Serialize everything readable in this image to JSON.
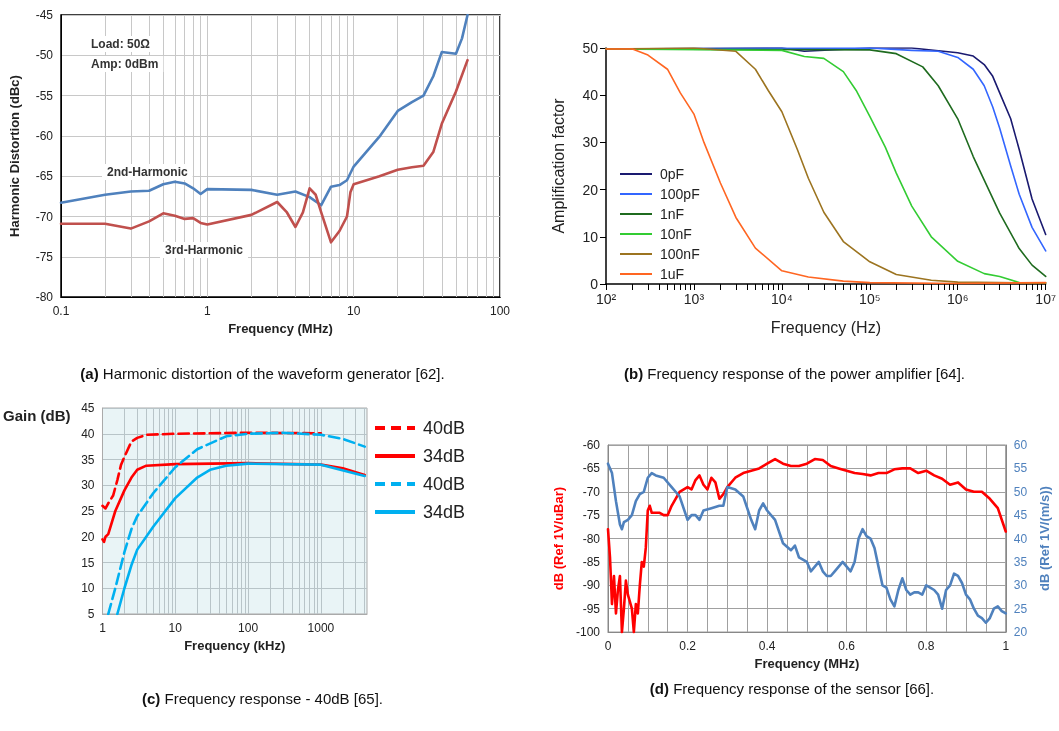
{
  "chart_data": [
    {
      "type": "line",
      "title": "(a) Harmonic distortion of the waveform generator [62].",
      "xlabel": "Frequency (MHz)",
      "ylabel": "Harmonic Distortion (dBc)",
      "log": "x",
      "grid": true,
      "xlim": [
        0.1,
        100
      ],
      "ylim": [
        -80,
        -45
      ],
      "xticks": [
        0.1,
        {
          "value": 0.2,
          "label": null
        },
        {
          "value": 0.3,
          "label": null
        },
        {
          "value": 0.4,
          "label": null
        },
        {
          "value": 0.5,
          "label": null
        },
        {
          "value": 0.6,
          "label": null
        },
        {
          "value": 0.7,
          "label": null
        },
        {
          "value": 0.8,
          "label": null
        },
        {
          "value": 0.9,
          "label": null
        },
        1,
        {
          "value": 2,
          "label": null
        },
        {
          "value": 3,
          "label": null
        },
        {
          "value": 4,
          "label": null
        },
        {
          "value": 5,
          "label": null
        },
        {
          "value": 6,
          "label": null
        },
        {
          "value": 7,
          "label": null
        },
        {
          "value": 8,
          "label": null
        },
        {
          "value": 9,
          "label": null
        },
        10,
        {
          "value": 20,
          "label": null
        },
        {
          "value": 30,
          "label": null
        },
        {
          "value": 40,
          "label": null
        },
        {
          "value": 50,
          "label": null
        },
        {
          "value": 60,
          "label": null
        },
        {
          "value": 70,
          "label": null
        },
        {
          "value": 80,
          "label": null
        },
        {
          "value": 90,
          "label": null
        },
        100
      ],
      "yticks": [
        -80,
        -75,
        -70,
        -65,
        -60,
        -55,
        -50,
        -45
      ],
      "annotations": [
        "Load: 50Ω",
        "Amp: 0dBm",
        "2nd-Harmonic",
        "3rd-Harmonic"
      ],
      "series": [
        {
          "color": "#4f81bd",
          "x": [
            0.1,
            0.2,
            0.3,
            0.4,
            0.5,
            0.6,
            0.7,
            0.8,
            0.9,
            1,
            2,
            3,
            4,
            5,
            6,
            7,
            8,
            9,
            10,
            15,
            20,
            25,
            30,
            35,
            40,
            50,
            55,
            60
          ],
          "values": [
            -68.3,
            -67.3,
            -66.9,
            -66.8,
            -66.0,
            -65.7,
            -65.9,
            -66.5,
            -67.2,
            -66.6,
            -66.7,
            -67.3,
            -66.9,
            -67.6,
            -68.6,
            -66.3,
            -66.1,
            -65.5,
            -63.8,
            -60.1,
            -56.9,
            -55.8,
            -55.0,
            -52.6,
            -49.6,
            -49.8,
            -47.9,
            -45
          ]
        },
        {
          "color": "#c0504d",
          "x": [
            0.1,
            0.2,
            0.3,
            0.4,
            0.5,
            0.6,
            0.7,
            0.8,
            0.9,
            1,
            2,
            3,
            3.5,
            4,
            4.5,
            5,
            5.5,
            6,
            7,
            8,
            9,
            9.5,
            10,
            15,
            20,
            25,
            30,
            35,
            40,
            50,
            60
          ],
          "values": [
            -70.9,
            -70.9,
            -71.5,
            -70.6,
            -69.6,
            -69.9,
            -70.3,
            -70.2,
            -70.8,
            -71.0,
            -69.8,
            -68.2,
            -69.5,
            -71.3,
            -69.5,
            -66.5,
            -67.3,
            -69.5,
            -73.2,
            -71.8,
            -70.0,
            -67.0,
            -66.0,
            -65.0,
            -64.2,
            -63.9,
            -63.7,
            -62.0,
            -58.5,
            -54.5,
            -50.6
          ]
        }
      ]
    },
    {
      "type": "line",
      "title": "(b) Frequency response of the power amplifier [64].",
      "xlabel": "Frequency (Hz)",
      "ylabel": "Amplification factor",
      "log": "x",
      "grid": false,
      "legend": "bottom left",
      "xlim": [
        100,
        10000000
      ],
      "ylim": [
        0,
        50
      ],
      "xticks": [
        {
          "value": 100,
          "label": "10²"
        },
        {
          "value": 200,
          "label": null
        },
        {
          "value": 300,
          "label": null
        },
        {
          "value": 400,
          "label": null
        },
        {
          "value": 500,
          "label": null
        },
        {
          "value": 600,
          "label": null
        },
        {
          "value": 700,
          "label": null
        },
        {
          "value": 800,
          "label": null
        },
        {
          "value": 900,
          "label": null
        },
        {
          "value": 1000,
          "label": "10³"
        },
        {
          "value": 2000,
          "label": null
        },
        {
          "value": 3000,
          "label": null
        },
        {
          "value": 4000,
          "label": null
        },
        {
          "value": 5000,
          "label": null
        },
        {
          "value": 6000,
          "label": null
        },
        {
          "value": 7000,
          "label": null
        },
        {
          "value": 8000,
          "label": null
        },
        {
          "value": 9000,
          "label": null
        },
        {
          "value": 10000,
          "label": "10⁴"
        },
        {
          "value": 20000,
          "label": null
        },
        {
          "value": 30000,
          "label": null
        },
        {
          "value": 40000,
          "label": null
        },
        {
          "value": 50000,
          "label": null
        },
        {
          "value": 60000,
          "label": null
        },
        {
          "value": 70000,
          "label": null
        },
        {
          "value": 80000,
          "label": null
        },
        {
          "value": 90000,
          "label": null
        },
        {
          "value": 100000,
          "label": "10⁵"
        },
        {
          "value": 200000,
          "label": null
        },
        {
          "value": 300000,
          "label": null
        },
        {
          "value": 400000,
          "label": null
        },
        {
          "value": 500000,
          "label": null
        },
        {
          "value": 600000,
          "label": null
        },
        {
          "value": 700000,
          "label": null
        },
        {
          "value": 800000,
          "label": null
        },
        {
          "value": 900000,
          "label": null
        },
        {
          "value": 1000000,
          "label": "10⁶"
        },
        {
          "value": 2000000,
          "label": null
        },
        {
          "value": 3000000,
          "label": null
        },
        {
          "value": 4000000,
          "label": null
        },
        {
          "value": 5000000,
          "label": null
        },
        {
          "value": 6000000,
          "label": null
        },
        {
          "value": 7000000,
          "label": null
        },
        {
          "value": 8000000,
          "label": null
        },
        {
          "value": 9000000,
          "label": null
        },
        {
          "value": 10000000,
          "label": "10⁷"
        }
      ],
      "yticks": [
        0,
        10,
        20,
        30,
        40,
        50
      ],
      "series": [
        {
          "name": "0pF",
          "color": "#1a1a70",
          "x": [
            100,
            10000,
            18000,
            100000,
            300000,
            1000000,
            1500000,
            2000000,
            2500000,
            3000000,
            4000000,
            5000000,
            7000000,
            10000000
          ],
          "values": [
            49.8,
            50,
            49.3,
            50,
            50,
            49,
            48.3,
            46.5,
            44,
            40.5,
            35,
            28.5,
            18,
            10.5
          ]
        },
        {
          "name": "100pF",
          "color": "#3366ff",
          "x": [
            100,
            100000,
            300000,
            600000,
            1000000,
            1500000,
            2000000,
            2500000,
            3000000,
            4000000,
            5000000,
            7000000,
            10000000
          ],
          "values": [
            49.8,
            50,
            49.5,
            49.3,
            48,
            45.5,
            42,
            37.5,
            33,
            25,
            19,
            12,
            7
          ]
        },
        {
          "name": "1nF",
          "color": "#1f6b1f",
          "x": [
            100,
            100000,
            200000,
            400000,
            600000,
            1000000,
            1500000,
            2000000,
            3000000,
            5000000,
            7000000,
            10000000
          ],
          "values": [
            49.8,
            49.6,
            48.8,
            46,
            42,
            35,
            27,
            22,
            15,
            7.5,
            4,
            1.6
          ]
        },
        {
          "name": "10nF",
          "color": "#33cc33",
          "x": [
            100,
            10000,
            18000,
            30000,
            50000,
            70000,
            100000,
            150000,
            200000,
            300000,
            500000,
            1000000,
            2000000,
            3000000,
            5000000,
            10000000
          ],
          "values": [
            49.8,
            49.5,
            48.2,
            47.8,
            45,
            41,
            35.5,
            29,
            23.5,
            16.5,
            10,
            4.8,
            2.2,
            1.6,
            0.3,
            0.2
          ]
        },
        {
          "name": "100nF",
          "color": "#9c7420",
          "x": [
            100,
            1000,
            3000,
            5000,
            7000,
            10000,
            15000,
            20000,
            30000,
            50000,
            100000,
            200000,
            500000,
            1000000,
            10000000
          ],
          "values": [
            49.8,
            50,
            49.3,
            45.5,
            41,
            36.5,
            28.5,
            22.4,
            15.2,
            9,
            4.7,
            2,
            0.8,
            0.4,
            0.2
          ]
        },
        {
          "name": "1uF",
          "color": "#ff6622",
          "x": [
            100,
            200,
            300,
            500,
            700,
            1000,
            1300,
            2000,
            3000,
            5000,
            10000,
            20000,
            50000,
            100000,
            1000000,
            10000000
          ],
          "values": [
            49.8,
            49.8,
            48.5,
            45.5,
            40.5,
            36,
            30,
            21.4,
            14.1,
            7.6,
            2.8,
            1.5,
            0.6,
            0.3,
            0.1,
            0.3
          ]
        }
      ]
    },
    {
      "type": "line",
      "title": "(c) Frequency response - 40dB [65].",
      "xlabel": "Frequency (kHz)",
      "ylabel": "Gain (dB)",
      "log": "x",
      "grid": true,
      "legend": "right",
      "xlim": [
        1,
        4300
      ],
      "ylim": [
        5,
        45
      ],
      "xticks": [
        1,
        {
          "value": 2,
          "label": null
        },
        {
          "value": 3,
          "label": null
        },
        {
          "value": 4,
          "label": null
        },
        {
          "value": 5,
          "label": null
        },
        {
          "value": 6,
          "label": null
        },
        {
          "value": 7,
          "label": null
        },
        {
          "value": 8,
          "label": null
        },
        {
          "value": 9,
          "label": null
        },
        10,
        {
          "value": 20,
          "label": null
        },
        {
          "value": 30,
          "label": null
        },
        {
          "value": 40,
          "label": null
        },
        {
          "value": 50,
          "label": null
        },
        {
          "value": 60,
          "label": null
        },
        {
          "value": 70,
          "label": null
        },
        {
          "value": 80,
          "label": null
        },
        {
          "value": 90,
          "label": null
        },
        100,
        {
          "value": 200,
          "label": null
        },
        {
          "value": 300,
          "label": null
        },
        {
          "value": 400,
          "label": null
        },
        {
          "value": 500,
          "label": null
        },
        {
          "value": 600,
          "label": null
        },
        {
          "value": 700,
          "label": null
        },
        {
          "value": 800,
          "label": null
        },
        {
          "value": 900,
          "label": null
        },
        1000,
        {
          "value": 2000,
          "label": null
        },
        {
          "value": 3000,
          "label": null
        },
        {
          "value": 4000,
          "label": null
        }
      ],
      "yticks": [
        5,
        10,
        15,
        20,
        25,
        30,
        35,
        40,
        45
      ],
      "series": [
        {
          "name": "40dB",
          "color": "#ff0000",
          "line_style": "dashed",
          "x": [
            1,
            1.1,
            1.2,
            1.4,
            1.6,
            1.8,
            2,
            2.5,
            3,
            4,
            10,
            100,
            1000
          ],
          "values": [
            26,
            25.5,
            26.5,
            28,
            31,
            34,
            35.5,
            38.5,
            39.2,
            39.8,
            40,
            40.2,
            40.1
          ]
        },
        {
          "name": "34dB",
          "color": "#ff0000",
          "line_style": "solid",
          "x": [
            1,
            1.05,
            1.1,
            1.2,
            1.5,
            2,
            2.5,
            3,
            4,
            10,
            100,
            1000,
            2000,
            4000
          ],
          "values": [
            19.5,
            19,
            20,
            20.5,
            25,
            29,
            31.5,
            33,
            33.8,
            34.1,
            34.3,
            34,
            33.3,
            32
          ]
        },
        {
          "name": "40dB",
          "color": "#00b0f0",
          "line_style": "dashed",
          "x": [
            1.2,
            1.5,
            2,
            2.5,
            3,
            5,
            10,
            20,
            50,
            100,
            300,
            1000,
            2000,
            4000
          ],
          "values": [
            5,
            10,
            17,
            21.5,
            24,
            28.5,
            33.5,
            37,
            39.5,
            40,
            40.2,
            39.8,
            39,
            37.5
          ]
        },
        {
          "name": "34dB",
          "color": "#00b0f0",
          "line_style": "solid",
          "x": [
            1.6,
            2,
            2.5,
            3,
            5,
            10,
            20,
            30,
            50,
            100,
            1000,
            4000
          ],
          "values": [
            5,
            10,
            14.5,
            17.5,
            22,
            27.5,
            31.5,
            33,
            33.8,
            34.2,
            34,
            31.8
          ]
        }
      ]
    },
    {
      "type": "line",
      "title": "(d) Frequency response of the sensor [66].",
      "xlabel": "Frequency (MHz)",
      "ylabel": "dB (Ref 1V/uBar)",
      "y2label": "dB (Ref 1V/(m/s))",
      "grid": true,
      "xlim": [
        0,
        1
      ],
      "ylim": [
        -100,
        -60
      ],
      "y2lim": [
        20,
        60
      ],
      "xticks": [
        0,
        {
          "value": 0.05,
          "label": null
        },
        {
          "value": 0.1,
          "label": null
        },
        {
          "value": 0.15,
          "label": null
        },
        0.2,
        {
          "value": 0.25,
          "label": null
        },
        {
          "value": 0.3,
          "label": null
        },
        {
          "value": 0.35,
          "label": null
        },
        0.4,
        {
          "value": 0.45,
          "label": null
        },
        {
          "value": 0.5,
          "label": null
        },
        {
          "value": 0.55,
          "label": null
        },
        0.6,
        {
          "value": 0.65,
          "label": null
        },
        {
          "value": 0.7,
          "label": null
        },
        {
          "value": 0.75,
          "label": null
        },
        0.8,
        {
          "value": 0.85,
          "label": null
        },
        {
          "value": 0.9,
          "label": null
        },
        {
          "value": 0.95,
          "label": null
        },
        1
      ],
      "yticks": [
        -100,
        -95,
        -90,
        -85,
        -80,
        -75,
        -70,
        -65,
        -60
      ],
      "y2ticks": [
        20,
        25,
        30,
        35,
        40,
        45,
        50,
        55,
        60
      ],
      "series": [
        {
          "color": "#ff0000",
          "axis": "y",
          "x": [
            0,
            0.005,
            0.01,
            0.015,
            0.02,
            0.025,
            0.03,
            0.035,
            0.04,
            0.045,
            0.05,
            0.06,
            0.065,
            0.07,
            0.075,
            0.08,
            0.085,
            0.09,
            0.095,
            0.1,
            0.105,
            0.11,
            0.13,
            0.14,
            0.15,
            0.16,
            0.18,
            0.2,
            0.21,
            0.22,
            0.23,
            0.24,
            0.25,
            0.26,
            0.27,
            0.28,
            0.29,
            0.3,
            0.32,
            0.34,
            0.36,
            0.38,
            0.4,
            0.42,
            0.44,
            0.46,
            0.48,
            0.5,
            0.52,
            0.54,
            0.56,
            0.58,
            0.6,
            0.62,
            0.64,
            0.66,
            0.68,
            0.7,
            0.72,
            0.74,
            0.76,
            0.78,
            0.8,
            0.82,
            0.84,
            0.86,
            0.88,
            0.9,
            0.92,
            0.94,
            0.96,
            0.98,
            1
          ],
          "values": [
            -78,
            -84,
            -94,
            -88,
            -96,
            -91,
            -88,
            -100,
            -95,
            -89,
            -92,
            -95,
            -100,
            -94,
            -96,
            -90,
            -85,
            -86,
            -82,
            -74,
            -73,
            -74.5,
            -74.5,
            -75,
            -75,
            -73,
            -70,
            -69,
            -69.5,
            -67.5,
            -66.5,
            -68.5,
            -69.5,
            -67,
            -68,
            -71.5,
            -70.5,
            -69,
            -67,
            -66,
            -65.5,
            -65,
            -64,
            -63,
            -64,
            -64.5,
            -64.5,
            -64,
            -63,
            -63.2,
            -64.5,
            -65,
            -65.5,
            -66,
            -66.2,
            -66.5,
            -66,
            -66,
            -65.2,
            -65,
            -65,
            -66,
            -65.5,
            -66.5,
            -67.2,
            -68.5,
            -68,
            -69.5,
            -70,
            -70,
            -71.5,
            -73.5,
            -78.5
          ]
        },
        {
          "color": "#4f81bd",
          "axis": "y2",
          "x": [
            0,
            0.01,
            0.02,
            0.03,
            0.035,
            0.04,
            0.05,
            0.06,
            0.07,
            0.08,
            0.09,
            0.1,
            0.11,
            0.12,
            0.14,
            0.16,
            0.17,
            0.18,
            0.2,
            0.21,
            0.22,
            0.23,
            0.24,
            0.26,
            0.28,
            0.29,
            0.3,
            0.32,
            0.34,
            0.36,
            0.37,
            0.38,
            0.39,
            0.4,
            0.42,
            0.44,
            0.46,
            0.47,
            0.48,
            0.5,
            0.51,
            0.52,
            0.53,
            0.54,
            0.55,
            0.56,
            0.57,
            0.58,
            0.59,
            0.6,
            0.61,
            0.62,
            0.63,
            0.64,
            0.65,
            0.66,
            0.67,
            0.68,
            0.69,
            0.7,
            0.71,
            0.72,
            0.73,
            0.74,
            0.75,
            0.76,
            0.77,
            0.78,
            0.79,
            0.8,
            0.81,
            0.82,
            0.83,
            0.84,
            0.85,
            0.86,
            0.87,
            0.88,
            0.89,
            0.9,
            0.91,
            0.92,
            0.93,
            0.94,
            0.95,
            0.96,
            0.97,
            0.98,
            0.99,
            1
          ],
          "values": [
            56,
            54,
            48,
            43,
            42,
            43.5,
            44,
            45,
            48,
            49.5,
            50,
            53,
            54,
            53.5,
            53,
            51,
            50,
            49,
            44,
            45,
            45,
            44,
            46,
            46.5,
            47,
            47,
            51,
            50.5,
            49,
            44,
            42,
            46,
            47.5,
            46,
            44,
            39,
            37.5,
            38.5,
            36,
            35,
            33,
            34,
            35,
            33,
            32,
            32,
            33,
            34,
            35,
            34,
            33,
            35,
            40,
            42,
            40.5,
            40,
            38,
            34,
            30,
            29.5,
            27,
            25.5,
            29,
            31.5,
            29,
            28,
            28.5,
            28.5,
            28,
            30,
            29.5,
            29,
            28,
            25,
            29,
            30,
            32.5,
            32,
            30.5,
            28,
            27,
            25,
            23.5,
            23,
            22,
            23,
            25,
            25.5,
            24.5,
            24
          ]
        }
      ]
    }
  ]
}
